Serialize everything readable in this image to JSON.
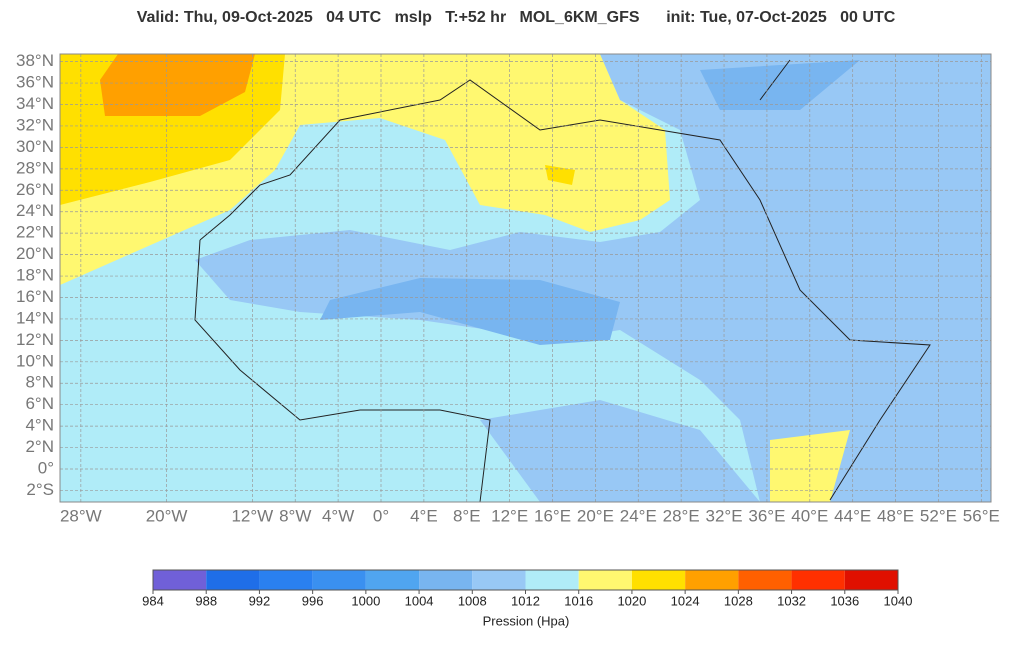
{
  "header": {
    "title": "Valid: Thu, 09-Oct-2025   04 UTC   mslp   T:+52 hr   MOL_6KM_GFS      init: Tue, 07-Oct-2025   00 UTC"
  },
  "map": {
    "lat_ticks": [
      {
        "value": 38,
        "label": "38°N"
      },
      {
        "value": 36,
        "label": "36°N"
      },
      {
        "value": 34,
        "label": "34°N"
      },
      {
        "value": 32,
        "label": "32°N"
      },
      {
        "value": 30,
        "label": "30°N"
      },
      {
        "value": 28,
        "label": "28°N"
      },
      {
        "value": 26,
        "label": "26°N"
      },
      {
        "value": 24,
        "label": "24°N"
      },
      {
        "value": 22,
        "label": "22°N"
      },
      {
        "value": 20,
        "label": "20°N"
      },
      {
        "value": 18,
        "label": "18°N"
      },
      {
        "value": 16,
        "label": "16°N"
      },
      {
        "value": 14,
        "label": "14°N"
      },
      {
        "value": 12,
        "label": "12°N"
      },
      {
        "value": 10,
        "label": "10°N"
      },
      {
        "value": 8,
        "label": "8°N"
      },
      {
        "value": 6,
        "label": "6°N"
      },
      {
        "value": 4,
        "label": "4°N"
      },
      {
        "value": 2,
        "label": "2°N"
      },
      {
        "value": 0,
        "label": "0°"
      },
      {
        "value": -2,
        "label": "2°S"
      }
    ],
    "lon_ticks": [
      {
        "value": -28,
        "label": "28°W"
      },
      {
        "value": -20,
        "label": "20°W"
      },
      {
        "value": -12,
        "label": "12°W"
      },
      {
        "value": -8,
        "label": "8°W"
      },
      {
        "value": -4,
        "label": "4°W"
      },
      {
        "value": 0,
        "label": "0°"
      },
      {
        "value": 4,
        "label": "4°E"
      },
      {
        "value": 8,
        "label": "8°E"
      },
      {
        "value": 12,
        "label": "12°E"
      },
      {
        "value": 16,
        "label": "16°E"
      },
      {
        "value": 20,
        "label": "20°E"
      },
      {
        "value": 24,
        "label": "24°E"
      },
      {
        "value": 28,
        "label": "28°E"
      },
      {
        "value": 32,
        "label": "32°E"
      },
      {
        "value": 36,
        "label": "36°E"
      },
      {
        "value": 40,
        "label": "40°E"
      },
      {
        "value": 44,
        "label": "44°E"
      },
      {
        "value": 48,
        "label": "48°E"
      },
      {
        "value": 52,
        "label": "52°E"
      },
      {
        "value": 56,
        "label": "56°E"
      }
    ]
  },
  "colorbar": {
    "ticks": [
      984,
      988,
      992,
      996,
      1000,
      1004,
      1008,
      1012,
      1016,
      1020,
      1024,
      1028,
      1032,
      1036,
      1040
    ],
    "colors": [
      "#7060d8",
      "#1f6ee8",
      "#2a80f0",
      "#3a90f0",
      "#50a5f0",
      "#78b5f0",
      "#98c8f5",
      "#b0ecf8",
      "#fff870",
      "#ffe000",
      "#ffa000",
      "#ff6000",
      "#ff3000",
      "#e01000"
    ],
    "label": "Pression (Hpa)"
  }
}
